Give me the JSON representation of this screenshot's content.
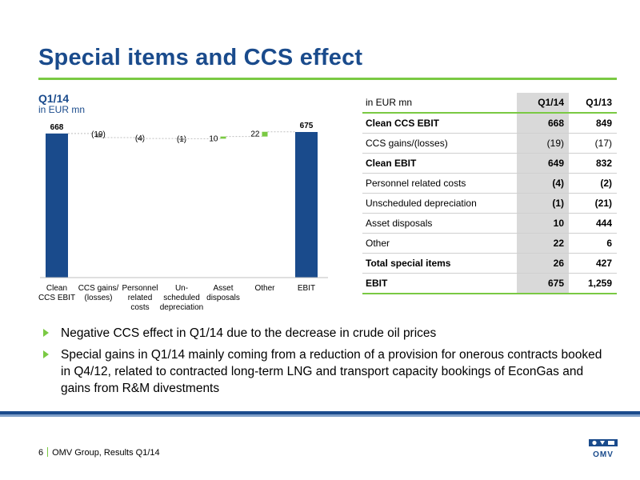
{
  "header": {
    "title": "Special items and CCS effect"
  },
  "chart_head": {
    "period": "Q1/14",
    "unit": "in EUR mn"
  },
  "colors": {
    "primary": "#1a4b8c",
    "accent": "#7ac943",
    "table_shade": "#d9d9d9"
  },
  "chart_data": {
    "type": "bar",
    "subtype": "waterfall",
    "categories": [
      "Clean\nCCS EBIT",
      "CCS gains/\n(losses)",
      "Personnel\nrelated\ncosts",
      "Un-\nscheduled\ndepreciation",
      "Asset\ndisposals",
      "Other",
      "EBIT"
    ],
    "values": [
      668,
      -19,
      -4,
      -1,
      10,
      22,
      675
    ],
    "labels": [
      "668",
      "(19)",
      "(4)",
      "(1)",
      "10",
      "22",
      "675"
    ],
    "kinds": [
      "total",
      "delta",
      "delta",
      "delta",
      "delta",
      "delta",
      "total"
    ],
    "grid": false
  },
  "table": {
    "header": [
      "in EUR mn",
      "Q1/14",
      "Q1/13"
    ],
    "rows": [
      {
        "label": "Clean CCS EBIT",
        "q114": "668",
        "q113": "849",
        "bold": true
      },
      {
        "label": "CCS gains/(losses)",
        "q114": "(19)",
        "q113": "(17)",
        "bold": false
      },
      {
        "label": "Clean EBIT",
        "q114": "649",
        "q113": "832",
        "bold": true
      },
      {
        "label": "Personnel related costs",
        "q114": "(4)",
        "q113": "(2)",
        "bold": false,
        "bold_values": true
      },
      {
        "label": "Unscheduled depreciation",
        "q114": "(1)",
        "q113": "(21)",
        "bold": false,
        "bold_values": true
      },
      {
        "label": "Asset disposals",
        "q114": "10",
        "q113": "444",
        "bold": false,
        "bold_values": true
      },
      {
        "label": "Other",
        "q114": "22",
        "q113": "6",
        "bold": false,
        "bold_values": true
      },
      {
        "label": "Total special items",
        "q114": "26",
        "q113": "427",
        "bold": true
      },
      {
        "label": "EBIT",
        "q114": "675",
        "q113": "1,259",
        "bold": true
      }
    ]
  },
  "bullets": [
    "Negative CCS effect in Q1/14 due to the decrease in crude oil prices",
    "Special gains in Q1/14 mainly coming from a reduction of a provision for onerous contracts booked in Q4/12, related to contracted long-term LNG and transport capacity bookings of EconGas and gains from R&M divestments"
  ],
  "footer": {
    "page": "6",
    "text": "OMV Group, Results Q1/14",
    "logo_text": "OMV"
  }
}
